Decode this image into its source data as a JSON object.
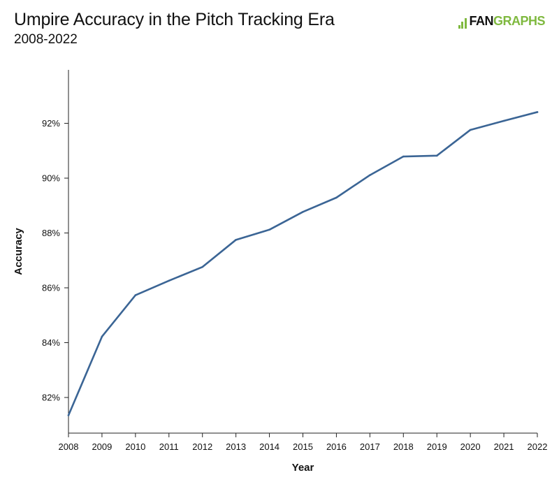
{
  "header": {
    "title": "Umpire Accuracy in the Pitch Tracking Era",
    "subtitle": "2008-2022",
    "logo_left": "FAN",
    "logo_right": "GRAPHS"
  },
  "colors": {
    "line": "#3b6595",
    "brand_green": "#7fb93f",
    "axis": "#222222"
  },
  "chart_data": {
    "type": "line",
    "title": "Umpire Accuracy in the Pitch Tracking Era",
    "subtitle": "2008-2022",
    "xlabel": "Year",
    "ylabel": "Accuracy",
    "x": [
      2008,
      2009,
      2010,
      2011,
      2012,
      2013,
      2014,
      2015,
      2016,
      2017,
      2018,
      2019,
      2020,
      2021,
      2022
    ],
    "series": [
      {
        "values": [
          81.35,
          84.22,
          85.73,
          86.26,
          86.76,
          87.75,
          88.12,
          88.77,
          89.29,
          90.11,
          90.79,
          90.82,
          91.76,
          92.09,
          92.41
        ]
      }
    ],
    "xlim": [
      2008,
      2022
    ],
    "ylim": [
      80.7,
      93.95
    ],
    "yticks": [
      82,
      84,
      86,
      88,
      90,
      92
    ],
    "ytick_labels": [
      "82%",
      "84%",
      "86%",
      "88%",
      "90%",
      "92%"
    ],
    "xtick_labels": [
      "2008",
      "2009",
      "2010",
      "2011",
      "2012",
      "2013",
      "2014",
      "2015",
      "2016",
      "2017",
      "2018",
      "2019",
      "2020",
      "2021",
      "2022"
    ],
    "grid": false,
    "legend": "none"
  }
}
